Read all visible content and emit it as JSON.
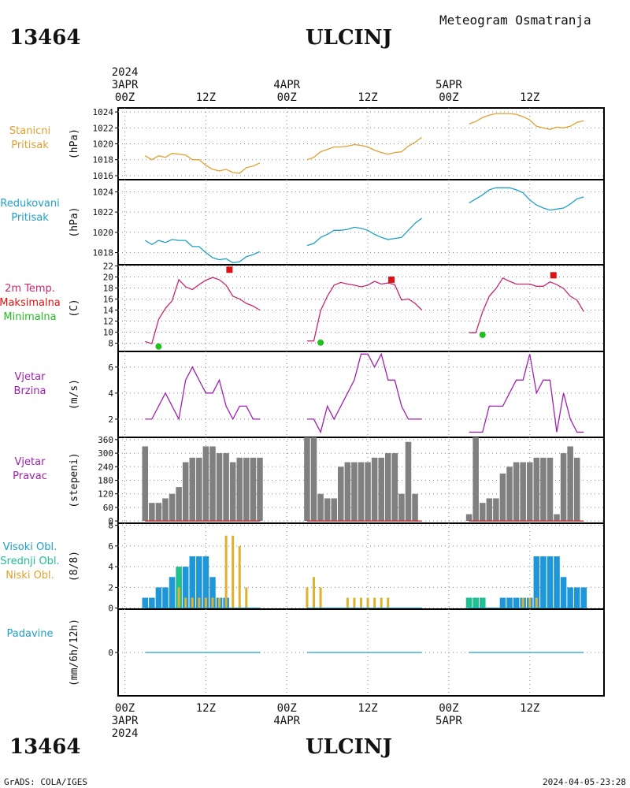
{
  "header": {
    "station_id": "13464",
    "station_name": "ULCINJ",
    "product": "Meteogram Osmatranja"
  },
  "footer": {
    "station_id": "13464",
    "station_name": "ULCINJ",
    "credit": "GrADS: COLA/IGES",
    "timestamp": "2024-04-05-23:28"
  },
  "time_axis": {
    "top": [
      {
        "lines": [
          "2024",
          "3APR",
          "00Z"
        ]
      },
      {
        "lines": [
          "12Z"
        ]
      },
      {
        "lines": [
          "4APR",
          "00Z"
        ]
      },
      {
        "lines": [
          "12Z"
        ]
      },
      {
        "lines": [
          "5APR",
          "00Z"
        ]
      },
      {
        "lines": [
          "12Z"
        ]
      }
    ],
    "bottom": [
      {
        "lines": [
          "00Z",
          "3APR",
          "2024"
        ]
      },
      {
        "lines": [
          "12Z"
        ]
      },
      {
        "lines": [
          "00Z",
          "4APR"
        ]
      },
      {
        "lines": [
          "12Z"
        ]
      },
      {
        "lines": [
          "00Z",
          "5APR"
        ]
      },
      {
        "lines": [
          "12Z"
        ]
      }
    ]
  },
  "panels": {
    "station_pressure": {
      "labels": [
        "Stanicni",
        "Pritisak"
      ],
      "label_colors": [
        "#e0a030",
        "#e0a030"
      ],
      "unit": "(hPa)"
    },
    "reduced_pressure": {
      "labels": [
        "Redukovani",
        "Pritisak"
      ],
      "label_colors": [
        "#1fa0c8",
        "#1fa0c8"
      ],
      "unit": "(hPa)"
    },
    "temperature": {
      "labels": [
        "2m Temp.",
        "Maksimalna",
        "Minimalna"
      ],
      "label_colors": [
        "#c8286e",
        "#e01010",
        "#20c020"
      ],
      "unit": "(C)"
    },
    "wind_speed": {
      "labels": [
        "Vjetar",
        "Brzina"
      ],
      "label_colors": [
        "#a020b0",
        "#a020b0"
      ],
      "unit": "(m/s)"
    },
    "wind_direction": {
      "labels": [
        "Vjetar",
        "Pravac"
      ],
      "label_colors": [
        "#a020b0",
        "#a020b0"
      ],
      "unit": "(stepeni)"
    },
    "clouds": {
      "labels": [
        "Visoki Obl.",
        "Srednji Obl.",
        "Niski Obl."
      ],
      "label_colors": [
        "#1fa0c8",
        "#20c090",
        "#e0a030"
      ],
      "unit": "(8/8)"
    },
    "precipitation": {
      "labels": [
        "Padavine"
      ],
      "label_colors": [
        "#1fa0c8"
      ],
      "unit": "(mm/6h/12h)"
    }
  },
  "chart_data": [
    {
      "type": "line",
      "id": "station_pressure",
      "ylim": [
        1015.5,
        1024.5
      ],
      "yticks": [
        1016,
        1018,
        1020,
        1022,
        1024
      ],
      "color": "#e0a030",
      "segments": [
        {
          "x": [
            3,
            4,
            5,
            6,
            7,
            8,
            9,
            10,
            11,
            12,
            13,
            14,
            15,
            16,
            17,
            18,
            19,
            20
          ],
          "y": [
            1018.5,
            1018.0,
            1018.5,
            1018.3,
            1018.8,
            1018.7,
            1018.6,
            1018.0,
            1018.0,
            1017.3,
            1016.8,
            1016.6,
            1016.8,
            1016.4,
            1016.3,
            1017.0,
            1017.2,
            1017.6
          ]
        },
        {
          "x": [
            27,
            28,
            29,
            30,
            31,
            32,
            33,
            34,
            35,
            36,
            37,
            38,
            39,
            40,
            41,
            42,
            43,
            44
          ],
          "y": [
            1018.0,
            1018.3,
            1019.0,
            1019.3,
            1019.6,
            1019.6,
            1019.7,
            1019.9,
            1019.8,
            1019.6,
            1019.2,
            1018.9,
            1018.7,
            1018.9,
            1019.0,
            1019.7,
            1020.2,
            1020.8
          ]
        },
        {
          "x": [
            51,
            52,
            53,
            54,
            55,
            56,
            57,
            58,
            59,
            60,
            61,
            62,
            63,
            64,
            65,
            66,
            67,
            68
          ],
          "y": [
            1022.5,
            1022.8,
            1023.3,
            1023.6,
            1023.8,
            1023.8,
            1023.8,
            1023.7,
            1023.4,
            1023.0,
            1022.2,
            1022.0,
            1021.8,
            1022.1,
            1022.0,
            1022.2,
            1022.7,
            1022.9
          ]
        }
      ]
    },
    {
      "type": "line",
      "id": "reduced_pressure",
      "ylim": [
        1016.8,
        1025.2
      ],
      "yticks": [
        1018,
        1020,
        1022,
        1024
      ],
      "color": "#1fa0c8",
      "segments": [
        {
          "x": [
            3,
            4,
            5,
            6,
            7,
            8,
            9,
            10,
            11,
            12,
            13,
            14,
            15,
            16,
            17,
            18,
            19,
            20
          ],
          "y": [
            1019.2,
            1018.8,
            1019.2,
            1019.0,
            1019.3,
            1019.2,
            1019.2,
            1018.6,
            1018.6,
            1018.0,
            1017.5,
            1017.3,
            1017.4,
            1017.0,
            1017.1,
            1017.6,
            1017.8,
            1018.1
          ]
        },
        {
          "x": [
            27,
            28,
            29,
            30,
            31,
            32,
            33,
            34,
            35,
            36,
            37,
            38,
            39,
            40,
            41,
            42,
            43,
            44
          ],
          "y": [
            1018.7,
            1018.9,
            1019.5,
            1019.8,
            1020.2,
            1020.2,
            1020.3,
            1020.5,
            1020.4,
            1020.2,
            1019.8,
            1019.5,
            1019.3,
            1019.4,
            1019.5,
            1020.2,
            1020.9,
            1021.4
          ]
        },
        {
          "x": [
            51,
            52,
            53,
            54,
            55,
            56,
            57,
            58,
            59,
            60,
            61,
            62,
            63,
            64,
            65,
            66,
            67,
            68
          ],
          "y": [
            1022.9,
            1023.3,
            1023.7,
            1024.2,
            1024.4,
            1024.4,
            1024.4,
            1024.2,
            1023.9,
            1023.2,
            1022.7,
            1022.4,
            1022.2,
            1022.3,
            1022.4,
            1022.8,
            1023.3,
            1023.5
          ]
        }
      ]
    },
    {
      "type": "line",
      "id": "temperature",
      "ylim": [
        6.5,
        22.2
      ],
      "yticks": [
        8,
        10,
        12,
        14,
        16,
        18,
        20,
        22
      ],
      "color": "#c8286e",
      "segments": [
        {
          "x": [
            3,
            4,
            5,
            6,
            7,
            8,
            9,
            10,
            11,
            12,
            13,
            14,
            15,
            16,
            17,
            18,
            19,
            20
          ],
          "y": [
            8.3,
            7.9,
            12.3,
            14.3,
            15.7,
            19.5,
            18.2,
            17.7,
            18.6,
            19.4,
            19.9,
            19.5,
            18.5,
            16.5,
            16.0,
            15.2,
            14.7,
            14.0
          ]
        },
        {
          "x": [
            27,
            28,
            29,
            30,
            31,
            32,
            33,
            34,
            35,
            36,
            37,
            38,
            39,
            40,
            41,
            42,
            43,
            44
          ],
          "y": [
            8.4,
            8.4,
            13.9,
            16.5,
            18.5,
            19.0,
            18.7,
            18.5,
            18.2,
            18.5,
            19.2,
            18.7,
            18.9,
            18.6,
            15.8,
            16.0,
            15.2,
            14.0
          ]
        },
        {
          "x": [
            51,
            52,
            53,
            54,
            55,
            56,
            57,
            58,
            59,
            60,
            61,
            62,
            63,
            64,
            65,
            66,
            67,
            68
          ],
          "y": [
            9.9,
            9.9,
            13.7,
            16.5,
            17.9,
            19.8,
            19.2,
            18.7,
            18.7,
            18.7,
            18.3,
            18.3,
            19.1,
            18.6,
            17.9,
            16.5,
            15.8,
            13.7
          ]
        }
      ],
      "max_points": [
        {
          "x": 15.5,
          "y": 21.3
        },
        {
          "x": 39.5,
          "y": 19.5
        },
        {
          "x": 63.5,
          "y": 20.3
        }
      ],
      "min_points": [
        {
          "x": 5,
          "y": 7.4
        },
        {
          "x": 29,
          "y": 8.1
        },
        {
          "x": 53,
          "y": 9.5
        }
      ],
      "max_color": "#e01010",
      "min_color": "#20c020"
    },
    {
      "type": "line",
      "id": "wind_speed",
      "ylim": [
        0.6,
        7.2
      ],
      "yticks": [
        2,
        4,
        6
      ],
      "color": "#a020b0",
      "segments": [
        {
          "x": [
            3,
            4,
            5,
            6,
            7,
            8,
            9,
            10,
            11,
            12,
            13,
            14,
            15,
            16,
            17,
            18,
            19,
            20
          ],
          "y": [
            2,
            2,
            3,
            4,
            3,
            2,
            5,
            6,
            5,
            4,
            4,
            5,
            3,
            2,
            3,
            3,
            2,
            2
          ]
        },
        {
          "x": [
            27,
            28,
            29,
            30,
            31,
            32,
            33,
            34,
            35,
            36,
            37,
            38,
            39,
            40,
            41,
            42,
            43,
            44
          ],
          "y": [
            2,
            2,
            1,
            3,
            2,
            3,
            4,
            5,
            7,
            7,
            6,
            7,
            5,
            5,
            3,
            2,
            2,
            2
          ]
        },
        {
          "x": [
            51,
            52,
            53,
            54,
            55,
            56,
            57,
            58,
            59,
            60,
            61,
            62,
            63,
            64,
            65,
            66,
            67,
            68
          ],
          "y": [
            1,
            1,
            1,
            3,
            3,
            3,
            4,
            5,
            5,
            7,
            4,
            5,
            5,
            1,
            4,
            2,
            1,
            1
          ]
        }
      ]
    },
    {
      "type": "bar",
      "id": "wind_direction",
      "ylim": [
        -10,
        370
      ],
      "yticks": [
        0,
        60,
        120,
        180,
        240,
        300,
        360
      ],
      "color": "#808080",
      "baseline_color": "#c02020",
      "x": [
        3,
        4,
        5,
        6,
        7,
        8,
        9,
        10,
        11,
        12,
        13,
        14,
        15,
        16,
        17,
        18,
        19,
        20,
        27,
        28,
        29,
        30,
        31,
        32,
        33,
        34,
        35,
        36,
        37,
        38,
        39,
        40,
        41,
        42,
        43,
        44,
        51,
        52,
        53,
        54,
        55,
        56,
        57,
        58,
        59,
        60,
        61,
        62,
        63,
        64,
        65,
        66,
        67,
        68
      ],
      "values": [
        330,
        80,
        80,
        100,
        120,
        150,
        260,
        280,
        280,
        330,
        330,
        300,
        300,
        260,
        280,
        280,
        280,
        280,
        370,
        370,
        120,
        100,
        100,
        240,
        260,
        260,
        260,
        260,
        280,
        280,
        300,
        300,
        120,
        350,
        120,
        null,
        30,
        370,
        80,
        100,
        100,
        210,
        240,
        260,
        260,
        260,
        280,
        280,
        280,
        30,
        300,
        330,
        280,
        null
      ]
    },
    {
      "type": "bar",
      "id": "clouds",
      "ylim": [
        -0.1,
        8.2
      ],
      "yticks": [
        0,
        2,
        4,
        6,
        8
      ],
      "series": [
        {
          "name": "Visoki Obl.",
          "color": "#1f96d8",
          "x": [
            3,
            4,
            5,
            6,
            7,
            8,
            9,
            10,
            11,
            12,
            13,
            14,
            15,
            51,
            52,
            53,
            56,
            57,
            58,
            59,
            60,
            61,
            62,
            63,
            64,
            65,
            66,
            67,
            68
          ],
          "values": [
            1,
            1,
            2,
            2,
            3,
            3,
            4,
            5,
            5,
            5,
            3,
            1,
            1,
            1,
            1,
            1,
            1,
            1,
            1,
            1,
            1,
            5,
            5,
            5,
            5,
            3,
            2,
            2,
            2
          ]
        },
        {
          "name": "Srednji Obl.",
          "color": "#20c090",
          "x": [
            8,
            51,
            52,
            53
          ],
          "values": [
            4,
            1,
            1,
            1
          ]
        },
        {
          "name": "Niski Obl.",
          "color": "#e0b030",
          "x": [
            8,
            9,
            10,
            11,
            12,
            13,
            14,
            15,
            16,
            17,
            18,
            27,
            28,
            29,
            33,
            34,
            35,
            36,
            37,
            38,
            39,
            59,
            60,
            61
          ],
          "values": [
            2,
            1,
            1,
            1,
            1,
            1,
            1,
            7,
            7,
            6,
            2,
            2,
            3,
            2,
            1,
            1,
            1,
            1,
            1,
            1,
            1,
            1,
            1,
            1
          ]
        }
      ]
    },
    {
      "type": "line",
      "id": "precipitation",
      "ylim": [
        -4,
        4
      ],
      "yticks": [
        0
      ],
      "color": "#1fa0c8",
      "segments": [
        {
          "x": [
            3,
            20
          ],
          "y": [
            0,
            0
          ]
        },
        {
          "x": [
            27,
            44
          ],
          "y": [
            0,
            0
          ]
        },
        {
          "x": [
            51,
            68
          ],
          "y": [
            0,
            0
          ]
        }
      ]
    }
  ]
}
